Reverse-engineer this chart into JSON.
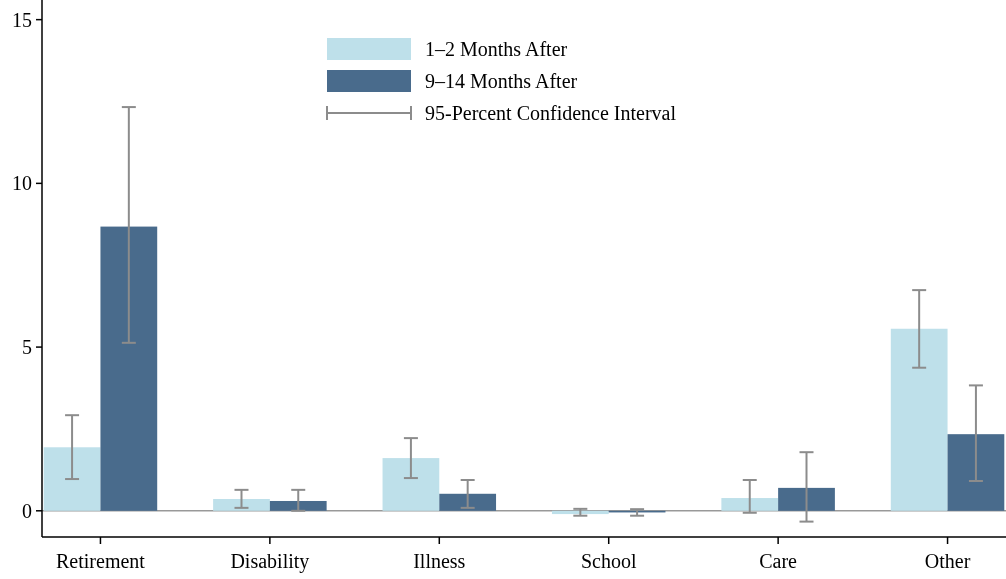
{
  "chart_data": {
    "type": "bar",
    "categories": [
      "Retirement",
      "Disability",
      "Illness",
      "School",
      "Care",
      "Other"
    ],
    "series": [
      {
        "name": "1–2 Months After",
        "color": "#bee0ea",
        "values": [
          1.94,
          0.36,
          1.61,
          -0.1,
          0.39,
          5.56
        ],
        "errors": [
          [
            0.97,
            2.92
          ],
          [
            0.09,
            0.64
          ],
          [
            1.0,
            2.22
          ],
          [
            -0.15,
            0.06
          ],
          [
            -0.06,
            0.94
          ],
          [
            4.37,
            6.74
          ]
        ]
      },
      {
        "name": "9–14 Months After",
        "color": "#496b8c",
        "values": [
          8.68,
          0.3,
          0.52,
          -0.05,
          0.7,
          2.34
        ],
        "errors": [
          [
            5.13,
            12.33
          ],
          [
            0.0,
            0.64
          ],
          [
            0.09,
            0.94
          ],
          [
            -0.15,
            0.05
          ],
          [
            -0.33,
            1.79
          ],
          [
            0.91,
            3.83
          ]
        ]
      }
    ],
    "annotations": [
      "95-Percent Confidence Interval"
    ],
    "ylim": [
      -0.8,
      15.6
    ],
    "yticks": [
      0,
      5,
      10,
      15
    ],
    "grid": false,
    "legend": "top",
    "ref_lines": [
      {
        "axis": "y",
        "value": 0,
        "color": "#999999"
      }
    ]
  }
}
